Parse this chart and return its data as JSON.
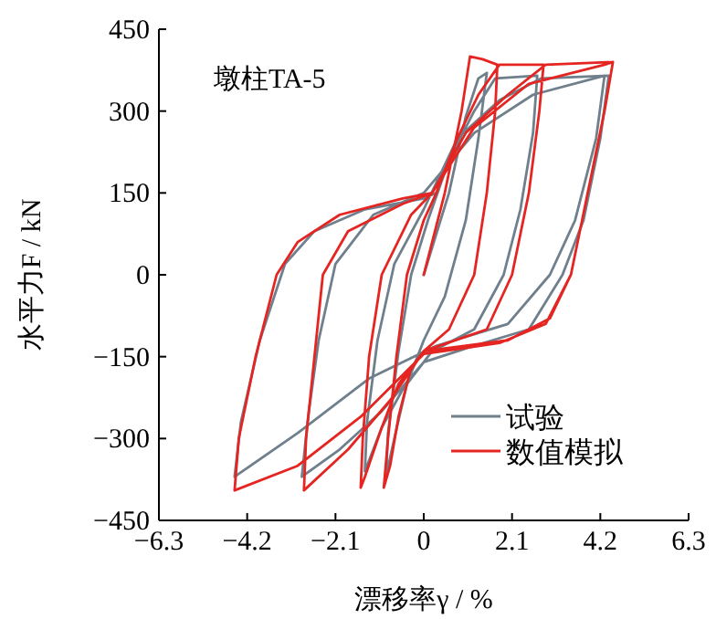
{
  "chart_data": {
    "type": "line",
    "xlabel": "漂移率γ / %",
    "ylabel": "水平力F / kN",
    "annotations": [
      "墩柱TA-5"
    ],
    "xlim": [
      -6.3,
      6.3
    ],
    "ylim": [
      -450,
      450
    ],
    "xticks": [
      {
        "value": -6.3,
        "label": "−6.3"
      },
      {
        "value": -4.2,
        "label": "−4.2"
      },
      {
        "value": -2.1,
        "label": "−2.1"
      },
      0,
      2.1,
      4.2,
      6.3
    ],
    "yticks": [
      {
        "value": -450,
        "label": "−450"
      },
      {
        "value": -300,
        "label": "−300"
      },
      {
        "value": -150,
        "label": "−150"
      },
      0,
      150,
      300,
      450
    ],
    "legend": "bottom right",
    "grid": false,
    "marker": "none",
    "line_style": "solid",
    "series": [
      {
        "name": "试验",
        "color": "#6f7f8c",
        "x": [
          0,
          0.6,
          1.0,
          1.3,
          1.5,
          1.3,
          1.0,
          0.5,
          0,
          -0.4,
          -0.7,
          -0.9,
          -0.85,
          -0.6,
          -0.3,
          0.1,
          0.6,
          1.2,
          1.7,
          2.7,
          2.6,
          2.3,
          1.9,
          1.2,
          0.2,
          -0.5,
          -1.0,
          -1.4,
          -1.35,
          -1.1,
          -0.7,
          0,
          0.8,
          1.8,
          2.8,
          4.4,
          4.2,
          3.8,
          3.3,
          2.5,
          1.2,
          0,
          -1.0,
          -2.0,
          -2.9,
          -2.75,
          -2.5,
          -2.1,
          -1.2,
          0,
          1.2,
          2.6,
          4.3,
          4.1,
          3.6,
          3.0,
          2.0,
          0.3,
          -1.3,
          -3.0,
          -4.5,
          -4.35,
          -3.9,
          -3.3,
          -2.6,
          -1.4,
          0,
          0.3
        ],
        "values": [
          0,
          150,
          290,
          360,
          370,
          250,
          100,
          -40,
          -120,
          -200,
          -300,
          -370,
          -290,
          -140,
          0,
          100,
          210,
          300,
          360,
          365,
          260,
          120,
          0,
          -100,
          -140,
          -210,
          -280,
          -360,
          -270,
          -120,
          20,
          120,
          250,
          320,
          360,
          365,
          250,
          100,
          0,
          -100,
          -130,
          -160,
          -250,
          -320,
          -370,
          -260,
          -120,
          20,
          110,
          150,
          260,
          330,
          365,
          250,
          100,
          0,
          -90,
          -130,
          -190,
          -290,
          -370,
          -270,
          -120,
          20,
          80,
          120,
          140,
          150
        ]
      },
      {
        "name": "数值模拟",
        "color": "#e52521",
        "x": [
          0,
          0.5,
          0.9,
          1.1,
          1.4,
          1.75,
          1.7,
          1.5,
          1.2,
          0.6,
          0,
          -0.3,
          -0.6,
          -0.8,
          -0.95,
          -0.85,
          -0.65,
          -0.4,
          0,
          0.3,
          0.8,
          1.3,
          1.8,
          2.85,
          2.75,
          2.5,
          2.1,
          1.5,
          0,
          -0.6,
          -1.0,
          -1.4,
          -1.5,
          -1.45,
          -1.3,
          -1.0,
          -0.3,
          0.2,
          1.0,
          2.0,
          2.9,
          4.5,
          4.3,
          3.9,
          3.5,
          3.0,
          2.0,
          0,
          -0.8,
          -1.8,
          -2.85,
          -2.8,
          -2.6,
          -2.4,
          -1.8,
          -0.5,
          0.2,
          1.2,
          2.5,
          4.3,
          4.5,
          4.3,
          3.9,
          3.5,
          2.9,
          1.8,
          0,
          -1.5,
          -3.0,
          -4.5,
          -4.4,
          -4.0,
          -3.5,
          -3.0,
          -2.0,
          -0.5,
          0.2
        ],
        "values": [
          0,
          150,
          300,
          400,
          395,
          385,
          300,
          150,
          0,
          -100,
          -140,
          -170,
          -260,
          -350,
          -390,
          -300,
          -150,
          0,
          100,
          150,
          250,
          330,
          385,
          385,
          300,
          150,
          0,
          -100,
          -140,
          -200,
          -280,
          -370,
          -390,
          -300,
          -150,
          0,
          110,
          150,
          260,
          330,
          385,
          390,
          300,
          150,
          0,
          -80,
          -120,
          -140,
          -230,
          -320,
          -395,
          -300,
          -150,
          0,
          80,
          130,
          150,
          270,
          350,
          385,
          390,
          300,
          150,
          0,
          -90,
          -125,
          -145,
          -260,
          -350,
          -395,
          -300,
          -150,
          0,
          60,
          110,
          140,
          150
        ]
      }
    ]
  }
}
